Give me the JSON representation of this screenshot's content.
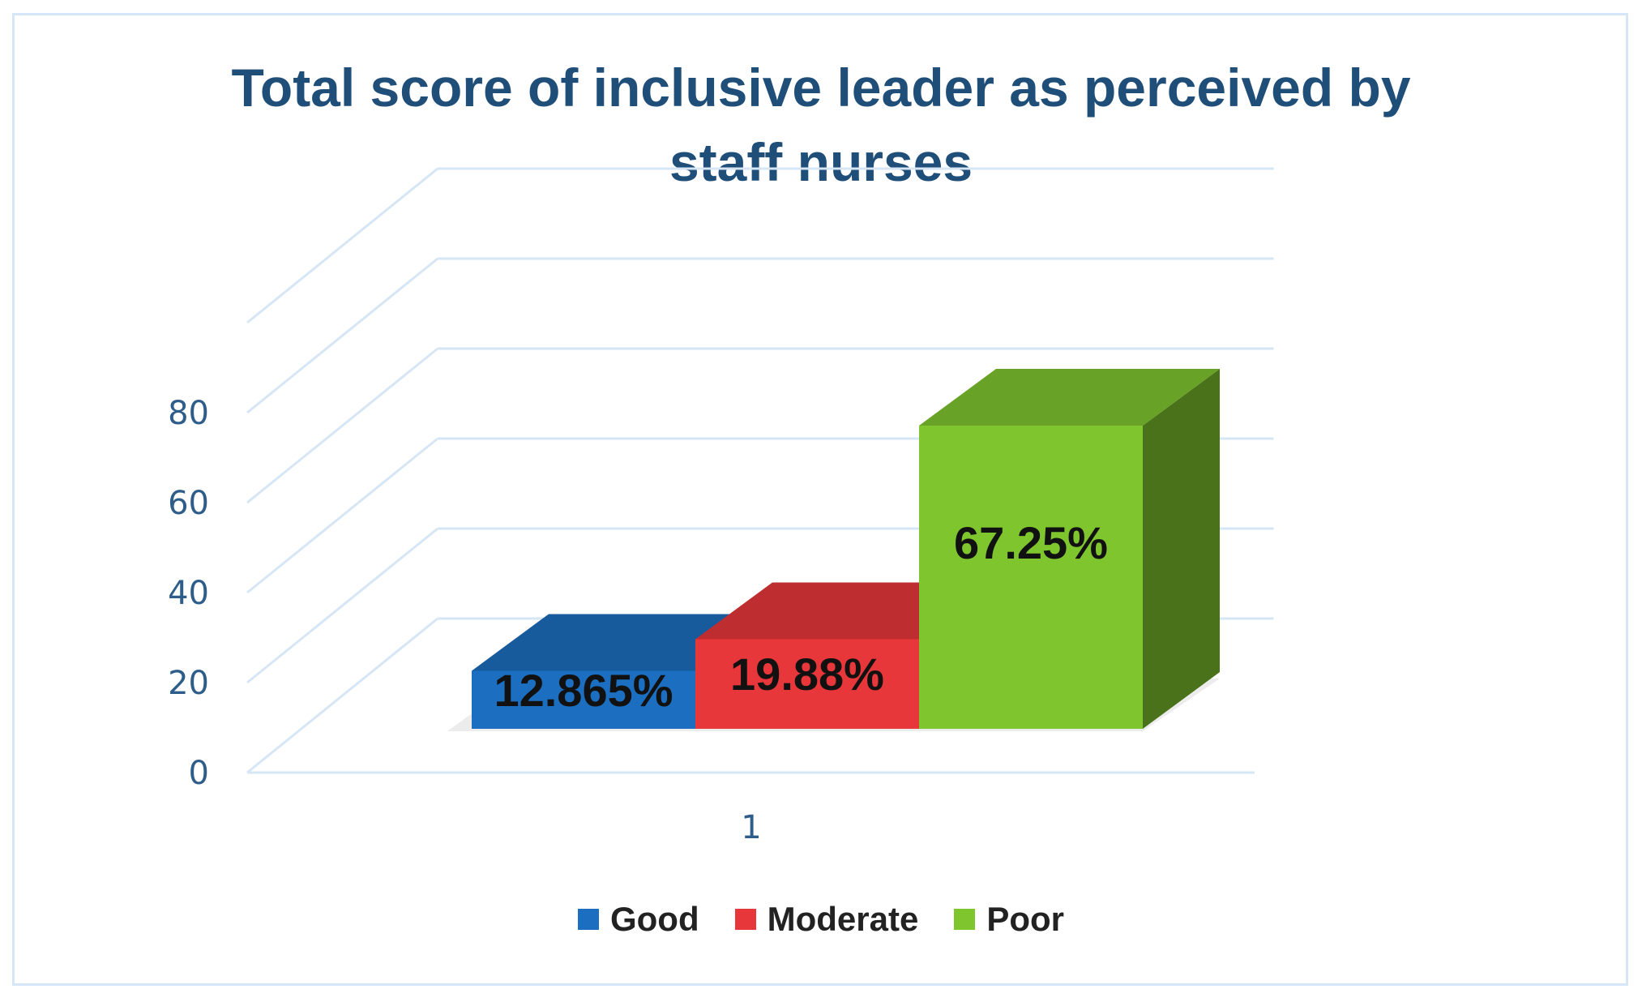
{
  "chart_data": {
    "type": "bar",
    "title_lines": [
      "Total score of inclusive leader as perceived by",
      "staff nurses"
    ],
    "categories": [
      "1"
    ],
    "series": [
      {
        "name": "Good",
        "values": [
          12.865
        ],
        "label": "12.865%",
        "color": "#1c6fc0"
      },
      {
        "name": "Moderate",
        "values": [
          19.88
        ],
        "label": "19.88%",
        "color": "#e8373a"
      },
      {
        "name": "Poor",
        "values": [
          67.25
        ],
        "label": "67.25%",
        "color": "#7fc52e"
      }
    ],
    "y_ticks": [
      "0",
      "20",
      "40",
      "60",
      "80"
    ],
    "ylim": [
      0,
      100
    ],
    "grid": true,
    "legend_position": "bottom",
    "style": "3d-column"
  }
}
